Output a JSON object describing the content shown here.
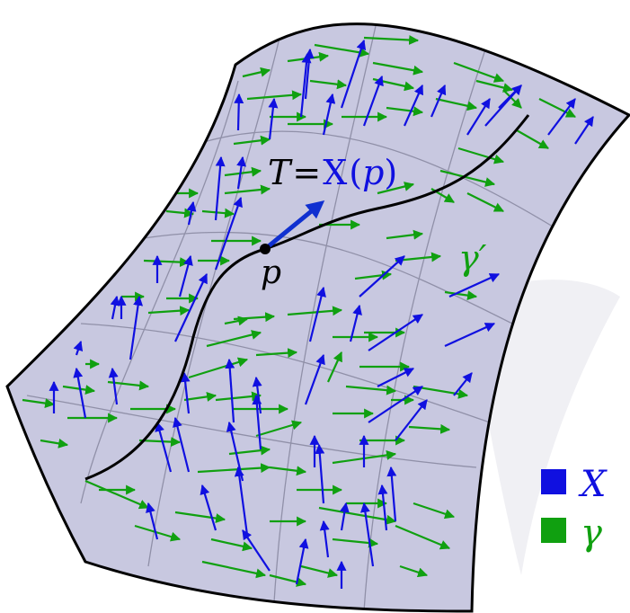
{
  "labels": {
    "tangent_T": "T",
    "tangent_eq": "=",
    "tangent_X": "X",
    "tangent_paren_open": "(",
    "tangent_p": "p",
    "tangent_paren_close": ")",
    "point": "p",
    "curve": "γ′"
  },
  "legend": [
    {
      "label": "X",
      "color": "#1010e0"
    },
    {
      "label": "γ",
      "color": "#10a010"
    }
  ],
  "colors": {
    "surface_fill": "#c8c8e0",
    "surface_stroke": "#000000",
    "grid": "#9090a8",
    "field_x": "#1010e0",
    "field_y": "#10a010",
    "curve": "#000000",
    "tangent": "#1030d0"
  }
}
